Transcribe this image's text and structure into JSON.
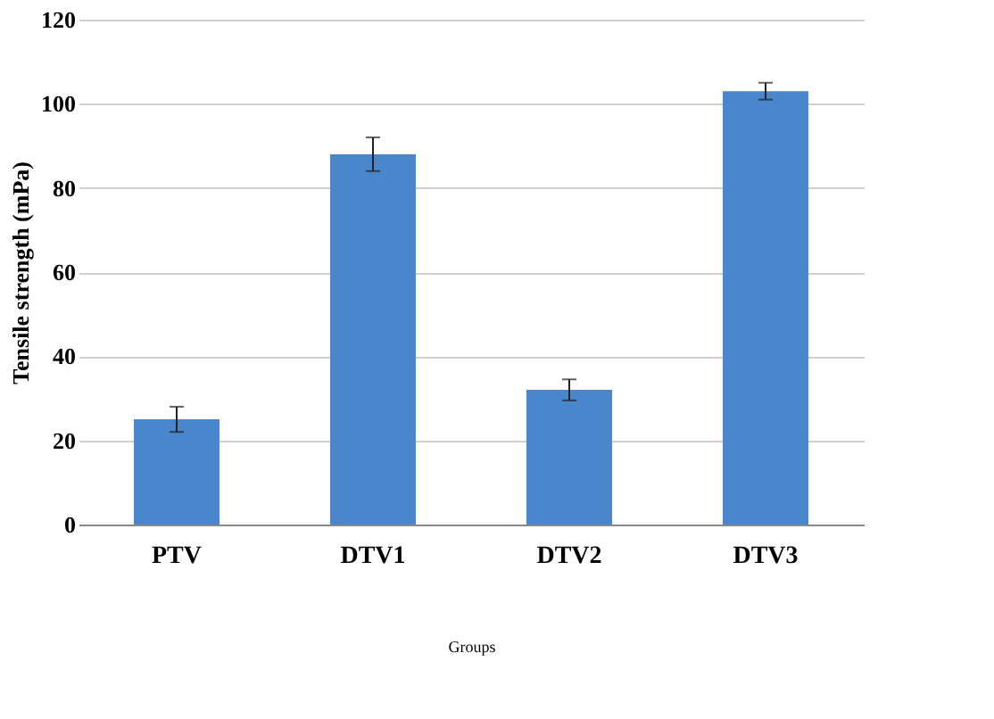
{
  "chart_data": {
    "type": "bar",
    "xlabel": "Groups",
    "ylabel": "Tensile strength (mPa)",
    "categories": [
      "PTV",
      "DTV1",
      "DTV2",
      "DTV3"
    ],
    "values": [
      25,
      88,
      32,
      103
    ],
    "errors": [
      3,
      4,
      2.5,
      2
    ],
    "color": "#4a86cc",
    "ylim": [
      0,
      120
    ],
    "yticks": [
      0,
      20,
      40,
      60,
      80,
      100,
      120
    ],
    "grid": "y"
  }
}
